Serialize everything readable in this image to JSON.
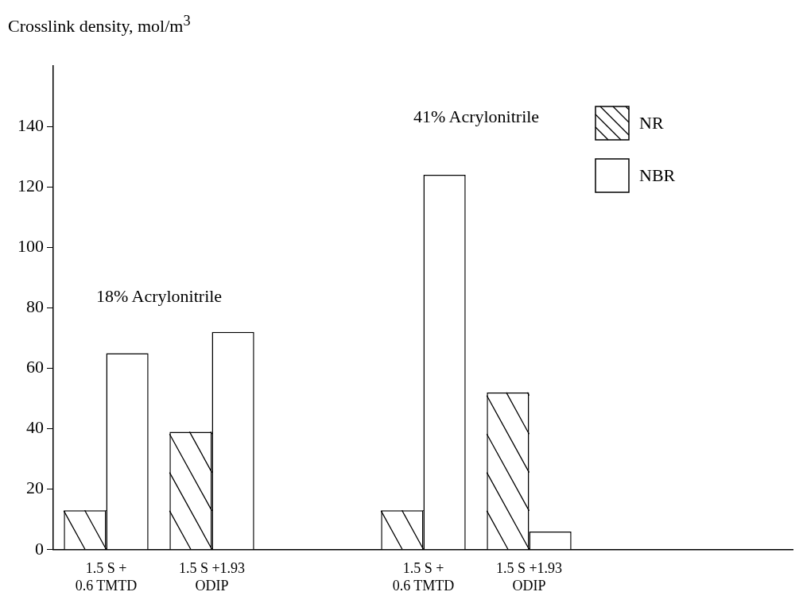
{
  "chart_data": {
    "type": "bar",
    "ylabel": "Crosslink density, mol/m$^{3}$",
    "categories": [
      "1.5 S +\n0.6 TMTD",
      "1.5 S +1.93\nODIP",
      null,
      "1.5 S +\n0.6 TMTD",
      "1.5 S +1.93\nODIP",
      null,
      null
    ],
    "series": [
      {
        "name": "NR",
        "color": "#ffffff",
        "values": [
          13,
          39,
          null,
          13,
          52,
          null,
          null
        ]
      },
      {
        "name": "NBR",
        "color": "#ffffff",
        "values": [
          65,
          72,
          null,
          124,
          6,
          null,
          null
        ]
      }
    ],
    "ylim": [
      0,
      160
    ],
    "yticks": [
      0,
      20,
      40,
      60,
      80,
      100,
      120,
      140
    ],
    "grid": false,
    "legend": "top right",
    "annotations": [
      "18% Acrylonitrile",
      "41% Acrylonitrile"
    ]
  }
}
